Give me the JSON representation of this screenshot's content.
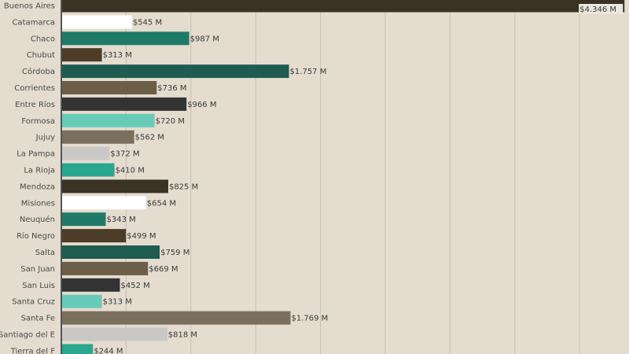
{
  "chart_data": {
    "type": "bar",
    "orientation": "horizontal",
    "title": "",
    "xlabel": "",
    "ylabel": "",
    "xlim": [
      0,
      4400
    ],
    "grid": true,
    "grid_step": 500,
    "categories": [
      "Buenos Aires",
      "Catamarca",
      "Chaco",
      "Chubut",
      "Córdoba",
      "Corrientes",
      "Entre Ríos",
      "Formosa",
      "Jujuy",
      "La Pampa",
      "La Rioja",
      "Mendoza",
      "Misiones",
      "Neuquén",
      "Río Negro",
      "Salta",
      "San Juan",
      "San Luis",
      "Santa Cruz",
      "Santa Fe",
      "Santiago del E",
      "Tierra del F"
    ],
    "values": [
      4346,
      545,
      987,
      313,
      1757,
      736,
      966,
      720,
      562,
      372,
      410,
      825,
      654,
      343,
      499,
      759,
      669,
      452,
      313,
      1769,
      818,
      244
    ],
    "labels": [
      "$4.346 M",
      "$545 M",
      "$987 M",
      "$313 M",
      "$1.757 M",
      "$736 M",
      "$966 M",
      "$720 M",
      "$562 M",
      "$372 M",
      "$410 M",
      "$825 M",
      "$654 M",
      "$343 M",
      "$499 M",
      "$759 M",
      "$669 M",
      "$452 M",
      "$313 M",
      "$1.769 M",
      "$818 M",
      "$244 M"
    ],
    "colors": [
      "#3b3226",
      "#ffffff",
      "#1f7a68",
      "#4d3c27",
      "#1e5c50",
      "#6d5e47",
      "#333333",
      "#68cbb9",
      "#7b6f5d",
      "#c9c8c4",
      "#2aa78f",
      "#3b3226",
      "#ffffff",
      "#1f7a68",
      "#4d3c27",
      "#1e5c50",
      "#6d5e47",
      "#333333",
      "#68cbb9",
      "#7b6f5d",
      "#c9c8c4",
      "#2aa78f"
    ]
  },
  "colors": {
    "background": "#e3dccf",
    "grid": "#c9c0b2",
    "axis": "#555555"
  }
}
